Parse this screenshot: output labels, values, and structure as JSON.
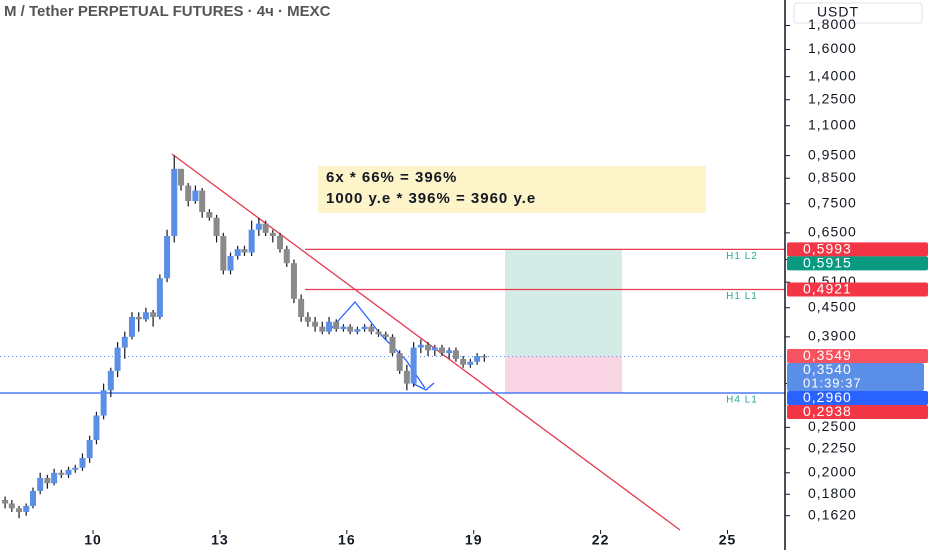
{
  "chart_data": {
    "type": "candlestick",
    "title": "M / Tether PERPETUAL FUTURES · 4ч · MEXC",
    "currency": "USDT",
    "log_scale": true,
    "up_color": "#5b8ee6",
    "down_color": "#8a8a8a",
    "xlim": [
      7.8,
      26.36
    ],
    "xticks": [
      10,
      13,
      16,
      19,
      22,
      25
    ],
    "ylim": [
      0.151,
      2.04
    ],
    "yticks": [
      {
        "value": 1.8,
        "label": "1,8000"
      },
      {
        "value": 1.6,
        "label": "1,6000"
      },
      {
        "value": 1.4,
        "label": "1,4000"
      },
      {
        "value": 1.25,
        "label": "1,2500"
      },
      {
        "value": 1.1,
        "label": "1,1000"
      },
      {
        "value": 0.95,
        "label": "0,9500"
      },
      {
        "value": 0.85,
        "label": "0,8500"
      },
      {
        "value": 0.75,
        "label": "0,7500"
      },
      {
        "value": 0.65,
        "label": "0,6500"
      },
      {
        "value": 0.57,
        "label": "0,5700"
      },
      {
        "value": 0.51,
        "label": "0,5100"
      },
      {
        "value": 0.45,
        "label": "0,4500"
      },
      {
        "value": 0.39,
        "label": "0,3900"
      },
      {
        "value": 0.31,
        "label": "0,3100"
      },
      {
        "value": 0.25,
        "label": "0,2500"
      },
      {
        "value": 0.225,
        "label": "0,2250"
      },
      {
        "value": 0.2,
        "label": "0,2000"
      },
      {
        "value": 0.18,
        "label": "0,1800"
      },
      {
        "value": 0.162,
        "label": "0,1620"
      }
    ],
    "x": [
      7.92,
      8.08,
      8.25,
      8.42,
      8.58,
      8.75,
      8.92,
      9.08,
      9.25,
      9.42,
      9.58,
      9.75,
      9.92,
      10.08,
      10.25,
      10.42,
      10.58,
      10.75,
      10.92,
      11.08,
      11.25,
      11.42,
      11.58,
      11.75,
      11.92,
      12.08,
      12.25,
      12.42,
      12.58,
      12.75,
      12.92,
      13.08,
      13.25,
      13.42,
      13.58,
      13.75,
      13.92,
      14.08,
      14.25,
      14.42,
      14.58,
      14.75,
      14.92,
      15.08,
      15.25,
      15.42,
      15.58,
      15.75,
      15.92,
      16.08,
      16.25,
      16.42,
      16.58,
      16.75,
      16.92,
      17.08,
      17.25,
      17.42,
      17.58,
      17.75,
      17.92,
      18.08,
      18.25,
      18.42,
      18.58,
      18.75,
      18.92,
      19.08,
      19.25
    ],
    "open": [
      0.175,
      0.172,
      0.168,
      0.165,
      0.17,
      0.183,
      0.195,
      0.19,
      0.2,
      0.198,
      0.203,
      0.205,
      0.215,
      0.235,
      0.265,
      0.3,
      0.33,
      0.37,
      0.39,
      0.43,
      0.425,
      0.44,
      0.43,
      0.52,
      0.64,
      0.89,
      0.82,
      0.76,
      0.8,
      0.72,
      0.7,
      0.64,
      0.54,
      0.58,
      0.6,
      0.59,
      0.66,
      0.68,
      0.65,
      0.64,
      0.6,
      0.56,
      0.47,
      0.43,
      0.42,
      0.41,
      0.4,
      0.42,
      0.405,
      0.41,
      0.4,
      0.405,
      0.41,
      0.4,
      0.395,
      0.39,
      0.36,
      0.33,
      0.31,
      0.37,
      0.375,
      0.365,
      0.37,
      0.36,
      0.365,
      0.35,
      0.34,
      0.345,
      0.355
    ],
    "high": [
      0.178,
      0.175,
      0.17,
      0.172,
      0.186,
      0.2,
      0.198,
      0.204,
      0.203,
      0.206,
      0.208,
      0.22,
      0.24,
      0.27,
      0.31,
      0.335,
      0.38,
      0.4,
      0.44,
      0.44,
      0.45,
      0.445,
      0.53,
      0.66,
      0.95,
      0.89,
      0.83,
      0.82,
      0.81,
      0.73,
      0.71,
      0.65,
      0.59,
      0.61,
      0.61,
      0.69,
      0.7,
      0.69,
      0.66,
      0.65,
      0.61,
      0.57,
      0.48,
      0.44,
      0.43,
      0.42,
      0.43,
      0.425,
      0.415,
      0.415,
      0.41,
      0.415,
      0.415,
      0.405,
      0.4,
      0.395,
      0.365,
      0.34,
      0.38,
      0.385,
      0.38,
      0.375,
      0.375,
      0.37,
      0.37,
      0.355,
      0.35,
      0.36,
      0.358
    ],
    "low": [
      0.168,
      0.165,
      0.16,
      0.162,
      0.168,
      0.18,
      0.185,
      0.188,
      0.195,
      0.195,
      0.2,
      0.202,
      0.21,
      0.23,
      0.26,
      0.29,
      0.32,
      0.35,
      0.385,
      0.4,
      0.42,
      0.41,
      0.425,
      0.51,
      0.62,
      0.8,
      0.74,
      0.75,
      0.7,
      0.69,
      0.62,
      0.53,
      0.53,
      0.57,
      0.58,
      0.58,
      0.64,
      0.64,
      0.62,
      0.59,
      0.55,
      0.46,
      0.42,
      0.41,
      0.4,
      0.395,
      0.395,
      0.4,
      0.4,
      0.395,
      0.395,
      0.4,
      0.395,
      0.39,
      0.385,
      0.355,
      0.325,
      0.3,
      0.305,
      0.36,
      0.355,
      0.355,
      0.355,
      0.35,
      0.345,
      0.335,
      0.335,
      0.34,
      0.345
    ],
    "close": [
      0.172,
      0.168,
      0.165,
      0.17,
      0.183,
      0.195,
      0.19,
      0.2,
      0.198,
      0.203,
      0.205,
      0.215,
      0.235,
      0.265,
      0.3,
      0.33,
      0.37,
      0.39,
      0.43,
      0.425,
      0.44,
      0.43,
      0.52,
      0.64,
      0.89,
      0.82,
      0.76,
      0.8,
      0.72,
      0.7,
      0.64,
      0.54,
      0.58,
      0.6,
      0.59,
      0.66,
      0.68,
      0.65,
      0.64,
      0.6,
      0.56,
      0.47,
      0.43,
      0.42,
      0.41,
      0.4,
      0.42,
      0.405,
      0.41,
      0.4,
      0.405,
      0.41,
      0.4,
      0.395,
      0.39,
      0.36,
      0.33,
      0.31,
      0.37,
      0.375,
      0.365,
      0.37,
      0.36,
      0.365,
      0.35,
      0.34,
      0.345,
      0.355,
      0.354
    ],
    "price_tags": [
      {
        "value": 0.5993,
        "label": "0,5993",
        "color": "#f23645"
      },
      {
        "value": 0.5915,
        "label": "0,5915",
        "color": "#089981"
      },
      {
        "value": 0.4921,
        "label": "0,4921",
        "color": "#f23645"
      },
      {
        "value": 0.3549,
        "label": "0,3549",
        "color": "#f7525f"
      },
      {
        "value": 0.354,
        "label": "0,3540",
        "color": "#5b8ee6",
        "countdown": "01:39:37"
      },
      {
        "value": 0.296,
        "label": "0,2960",
        "color": "#2962ff"
      },
      {
        "value": 0.2938,
        "label": "0,2938",
        "color": "#f23645"
      }
    ],
    "horizontal_lines": [
      {
        "value": 0.5993,
        "color": "#e53950",
        "tag": "H1 L2"
      },
      {
        "value": 0.4921,
        "color": "#e53950",
        "tag": "H1 L1"
      },
      {
        "value": 0.296,
        "color": "#2962ff",
        "tag": "H4 L1"
      }
    ],
    "position": {
      "target": 0.5993,
      "entry": 0.3549,
      "stop": 0.296
    },
    "annotation": [
      "6x * 66% = 396%",
      "1000 y.e * 396% = 3960 y.e"
    ]
  }
}
